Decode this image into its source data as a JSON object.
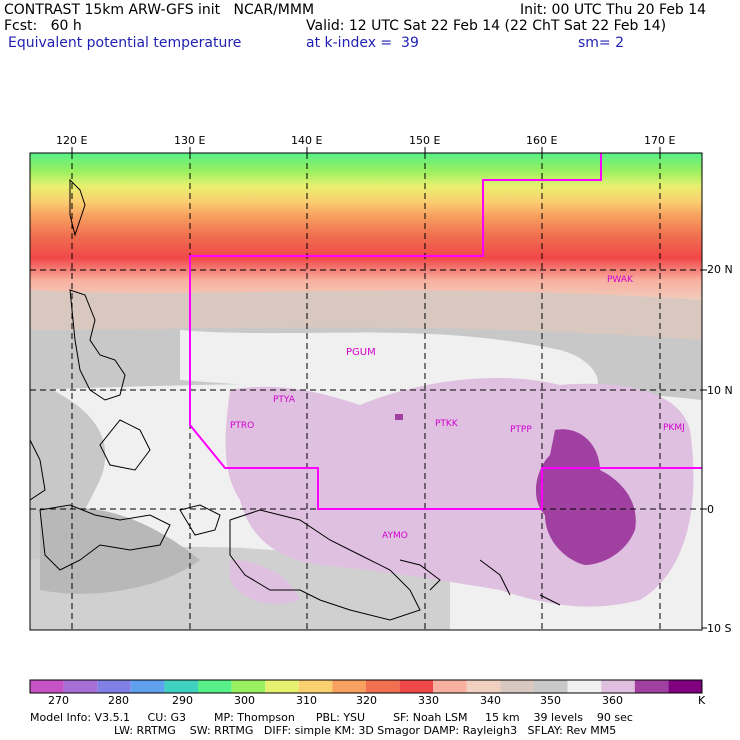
{
  "header": {
    "line1_left": "CONTRAST 15km ARW-GFS init   NCAR/MMM",
    "line1_right": "Init: 00 UTC Thu 20 Feb 14",
    "line2_left": "Fcst:   60 h",
    "line2_right": "Valid: 12 UTC Sat 22 Feb 14 (22 ChT Sat 22 Feb 14)",
    "line3_left": "Equivalent potential temperature",
    "line3_mid": "at k-index =  39",
    "line3_right": "sm= 2"
  },
  "axes": {
    "lon_labels": [
      "120 E",
      "130 E",
      "140 E",
      "150 E",
      "160 E",
      "170 E"
    ],
    "lat_labels": [
      "20 N",
      "10 N",
      "0",
      "10 S"
    ]
  },
  "stations": [
    "PWAK",
    "PGUM",
    "PTYA",
    "PTRO",
    "PTKK",
    "PTPP",
    "PKMJ",
    "AYMO"
  ],
  "colorbar": {
    "labels": [
      "270",
      "280",
      "290",
      "300",
      "310",
      "320",
      "330",
      "340",
      "350",
      "360"
    ],
    "unit": "K",
    "colors": [
      "#c653c6",
      "#a66fd6",
      "#8080e6",
      "#5fa0ef",
      "#40d0c0",
      "#58f088",
      "#98f060",
      "#e8f070",
      "#fad070",
      "#f8a060",
      "#f07050",
      "#f04848",
      "#f8b0a0",
      "#f0d0c0",
      "#d8c8c0",
      "#c8c8c8",
      "#f0f0f0",
      "#e0c0e0",
      "#a040a0",
      "#800080"
    ]
  },
  "footer": {
    "line1": "Model Info: V3.5.1     CU: G3        MP: Thompson      PBL: YSU        SF: Noah LSM     15 km    39 levels    90 sec",
    "line2": "LW: RRTMG    SW: RRTMG   DIFF: simple KM: 3D Smagor DAMP: Rayleigh3   SFLAY: Rev MM5"
  },
  "colors": {
    "boundary": "#ff00ff",
    "station_label": "#d000d0"
  }
}
